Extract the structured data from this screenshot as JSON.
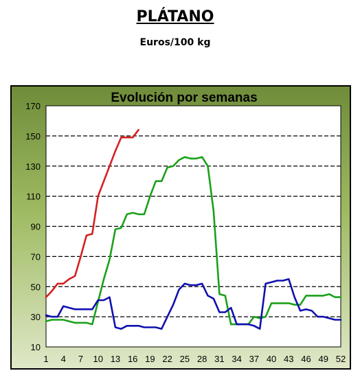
{
  "header": {
    "title": "PLÁTANO",
    "subtitle": "Euros/100 kg"
  },
  "chart_data": {
    "type": "line",
    "title": "Evolución por semanas",
    "xlabel": "",
    "ylabel": "",
    "xlim": [
      1,
      52
    ],
    "ylim": [
      10,
      170
    ],
    "x_ticks": [
      1,
      4,
      7,
      10,
      13,
      16,
      19,
      22,
      25,
      28,
      31,
      34,
      37,
      40,
      43,
      46,
      49,
      52
    ],
    "y_ticks": [
      10,
      30,
      50,
      70,
      90,
      110,
      130,
      150,
      170
    ],
    "grid": "horizontal dashed",
    "series": [
      {
        "color": "#d42020",
        "x": [
          1,
          2,
          3,
          4,
          5,
          6,
          7,
          8,
          9,
          10,
          11,
          12,
          13,
          14,
          15,
          16,
          17
        ],
        "y": [
          43,
          47,
          52,
          52,
          55,
          57,
          70,
          84,
          85,
          110,
          120,
          130,
          140,
          149,
          149,
          149,
          154
        ]
      },
      {
        "color": "#1aa01a",
        "x": [
          1,
          2,
          3,
          4,
          5,
          6,
          7,
          8,
          9,
          10,
          11,
          12,
          13,
          14,
          15,
          16,
          17,
          18,
          19,
          20,
          21,
          22,
          23,
          24,
          25,
          26,
          27,
          28,
          29,
          30,
          31,
          32,
          33,
          34,
          35,
          36,
          37,
          38,
          39,
          40,
          41,
          42,
          43,
          44,
          45,
          46,
          47,
          48,
          49,
          50,
          51,
          52
        ],
        "y": [
          27,
          28,
          28,
          28,
          27,
          26,
          26,
          26,
          25,
          40,
          55,
          68,
          88,
          89,
          98,
          99,
          98,
          98,
          110,
          120,
          120,
          129,
          130,
          134,
          136,
          135,
          135,
          136,
          130,
          100,
          45,
          44,
          25,
          25,
          25,
          25,
          30,
          29,
          30,
          39,
          39,
          39,
          39,
          38,
          38,
          44,
          44,
          44,
          44,
          45,
          43,
          43
        ]
      },
      {
        "color": "#1010b0",
        "x": [
          1,
          2,
          3,
          4,
          5,
          6,
          7,
          8,
          9,
          10,
          11,
          12,
          13,
          14,
          15,
          16,
          17,
          18,
          19,
          20,
          21,
          22,
          23,
          24,
          25,
          26,
          27,
          28,
          29,
          30,
          31,
          32,
          33,
          34,
          35,
          36,
          37,
          38,
          39,
          40,
          41,
          42,
          43,
          44,
          45,
          46,
          47,
          48,
          49,
          50,
          51,
          52
        ],
        "y": [
          31,
          30,
          30,
          37,
          36,
          35,
          35,
          35,
          35,
          41,
          41,
          43,
          23,
          22,
          24,
          24,
          24,
          23,
          23,
          23,
          22,
          30,
          38,
          48,
          52,
          51,
          51,
          52,
          44,
          42,
          33,
          33,
          36,
          25,
          25,
          25,
          24,
          22,
          52,
          53,
          54,
          54,
          55,
          43,
          34,
          35,
          34,
          30,
          30,
          29,
          28,
          28
        ]
      }
    ]
  }
}
